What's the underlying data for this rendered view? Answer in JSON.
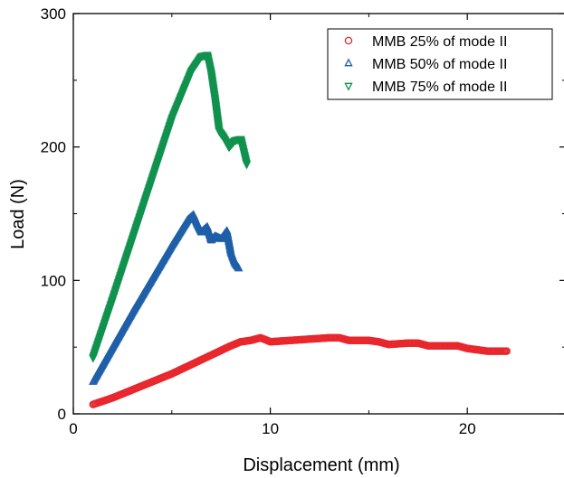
{
  "chart_data": {
    "type": "scatter",
    "title": "",
    "xlabel": "Displacement (mm)",
    "ylabel": "Load (N)",
    "xlim": [
      0,
      25
    ],
    "ylim": [
      0,
      300
    ],
    "x_ticks": [
      "0",
      "10",
      "20"
    ],
    "y_ticks": [
      "0",
      "100",
      "200",
      "300"
    ],
    "grid": false,
    "legend_position": "top-right",
    "series": [
      {
        "name": "MMB 25% of mode II",
        "color": "#e8272d",
        "marker": "circle",
        "x": [
          1.0,
          2.0,
          3.0,
          4.0,
          5.0,
          6.0,
          7.0,
          8.0,
          8.5,
          9.0,
          9.5,
          10.0,
          11.0,
          12.0,
          13.0,
          13.5,
          14.0,
          15.0,
          15.5,
          16.0,
          17.0,
          17.5,
          18.0,
          19.0,
          19.5,
          20.0,
          21.0,
          22.0
        ],
        "y": [
          7,
          12,
          18,
          24,
          30,
          37,
          44,
          51,
          54,
          55,
          57,
          54,
          55,
          56,
          57,
          57,
          55,
          55,
          54,
          52,
          53,
          53,
          51,
          51,
          51,
          49,
          47,
          47
        ]
      },
      {
        "name": "MMB 50% of mode II",
        "color": "#1f5fa8",
        "marker": "triangle-up",
        "x": [
          1.0,
          2.0,
          3.0,
          4.0,
          5.0,
          5.8,
          6.1,
          6.3,
          6.5,
          6.8,
          7.0,
          7.2,
          7.5,
          7.8,
          8.0,
          8.2,
          8.4
        ],
        "y": [
          24,
          50,
          76,
          101,
          126,
          145,
          149,
          142,
          136,
          140,
          130,
          133,
          131,
          137,
          121,
          113,
          109
        ]
      },
      {
        "name": "MMB 75% of mode II",
        "color": "#10924e",
        "marker": "triangle-down",
        "x": [
          1.0,
          2.0,
          3.0,
          4.0,
          5.0,
          6.0,
          6.5,
          6.8,
          7.0,
          7.2,
          7.4,
          7.6,
          7.9,
          8.2,
          8.5,
          8.8
        ],
        "y": [
          42,
          86,
          131,
          176,
          221,
          257,
          268,
          269,
          255,
          235,
          212,
          208,
          200,
          205,
          206,
          187
        ]
      }
    ]
  }
}
